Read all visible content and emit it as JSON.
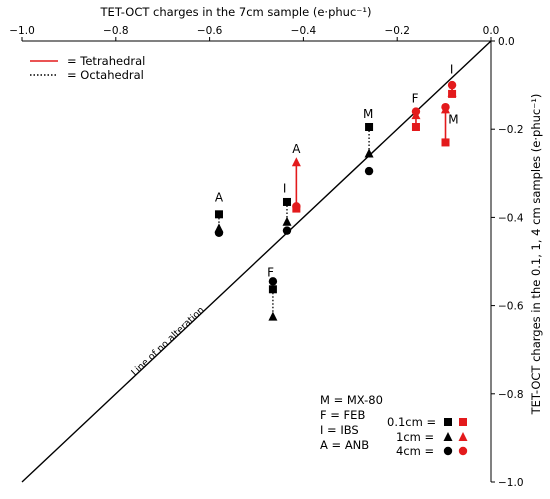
{
  "chart_data": {
    "type": "scatter",
    "xlabel": "TET-OCT charges in the 7cm sample (e·phuc⁻¹)",
    "ylabel": "TET-OCT charges in the 0.1, 1, 4 cm samples (e·phuc⁻¹)",
    "xlim": [
      -1.0,
      0.0
    ],
    "ylim": [
      -1.0,
      0.0
    ],
    "x_ticks": [
      "−1.0",
      "−0.8",
      "−0.6",
      "−0.4",
      "−0.2",
      "0.0"
    ],
    "y_ticks": [
      "0.0",
      "−0.2",
      "−0.4",
      "−0.6",
      "−0.8",
      "−1.0"
    ],
    "x_axis_position": "top",
    "y_axis_position": "right",
    "grid": false,
    "reference_line": {
      "label": "Line of no alteration",
      "points": [
        [
          -1.0,
          -1.0
        ],
        [
          0.0,
          0.0
        ]
      ]
    },
    "line_legend": [
      {
        "label": "= Tetrahedral",
        "style": "solid",
        "color": "#e31a1c"
      },
      {
        "label": "= Octahedral",
        "style": "dotted",
        "color": "#000000"
      }
    ],
    "sample_key": [
      "M = MX-80",
      "F = FEB",
      "I = IBS",
      "A = ANB"
    ],
    "marker_key": [
      {
        "label": "0.1cm =",
        "marker": "square"
      },
      {
        "label": "1cm =",
        "marker": "triangle"
      },
      {
        "label": "4cm =",
        "marker": "circle"
      }
    ],
    "colors": {
      "octahedral": "#000000",
      "tetrahedral": "#e31a1c",
      "reference": "#000000"
    },
    "groups": [
      {
        "sample": "A",
        "layer": "octahedral",
        "x": -0.58,
        "y": [
          -0.393,
          -0.425,
          -0.435
        ]
      },
      {
        "sample": "A",
        "layer": "tetrahedral",
        "x": -0.415,
        "y": [
          -0.38,
          -0.275,
          -0.375
        ]
      },
      {
        "sample": "I",
        "layer": "octahedral",
        "x": -0.435,
        "y": [
          -0.365,
          -0.41,
          -0.43
        ]
      },
      {
        "sample": "F",
        "layer": "octahedral",
        "x": -0.465,
        "y": [
          -0.563,
          -0.625,
          -0.545
        ]
      },
      {
        "sample": "M",
        "layer": "octahedral",
        "x": -0.26,
        "y": [
          -0.195,
          -0.255,
          -0.295
        ]
      },
      {
        "sample": "F",
        "layer": "tetrahedral",
        "x": -0.16,
        "y": [
          -0.195,
          -0.168,
          -0.16
        ]
      },
      {
        "sample": "I",
        "layer": "tetrahedral",
        "x": -0.083,
        "y": [
          -0.12,
          -0.117,
          -0.1
        ]
      },
      {
        "sample": "M",
        "layer": "tetrahedral",
        "x": -0.097,
        "y": [
          -0.23,
          -0.155,
          -0.15
        ]
      }
    ],
    "annotations": [
      {
        "text": "A",
        "x": -0.58,
        "y": -0.355
      },
      {
        "text": "A",
        "x": -0.415,
        "y": -0.245
      },
      {
        "text": "I",
        "x": -0.44,
        "y": -0.335
      },
      {
        "text": "F",
        "x": -0.47,
        "y": -0.525
      },
      {
        "text": "M",
        "x": -0.262,
        "y": -0.165
      },
      {
        "text": "F",
        "x": -0.162,
        "y": -0.13
      },
      {
        "text": "I",
        "x": -0.084,
        "y": -0.065
      },
      {
        "text": "M",
        "x": -0.08,
        "y": -0.178
      }
    ]
  }
}
